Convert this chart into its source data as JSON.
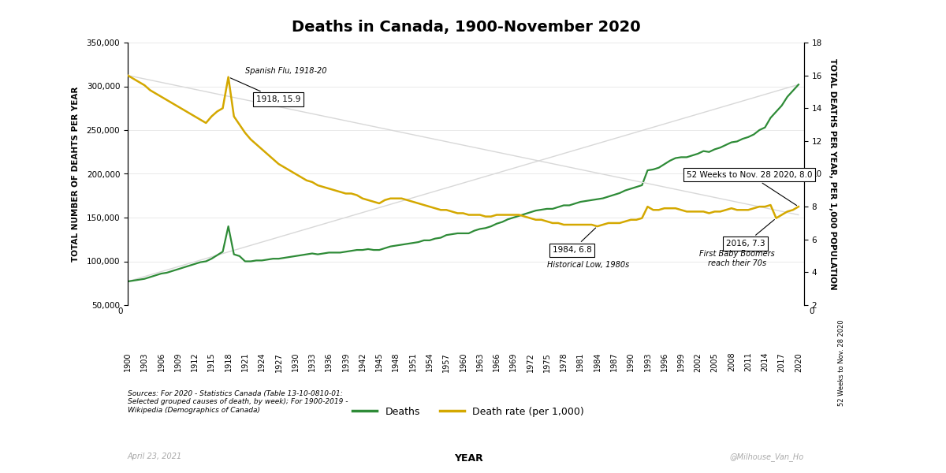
{
  "title": "Deaths in Canada, 1900-November 2020",
  "ylabel_left": "TOTAL NUMBER OF DEAHTS PER YEAR",
  "ylabel_right": "TOTAL DEATHS PER YEAR, PER 1,000 POPULATION",
  "xlabel": "YEAR",
  "left_ylim": [
    50000,
    350000
  ],
  "right_ylim": [
    2,
    18
  ],
  "deaths_color": "#2e8b37",
  "rate_color": "#d4a800",
  "trend_color": "#d0d0d0",
  "background_color": "#ffffff",
  "source_text": "Sources: For 2020 - Statistics Canada (Table 13-10-0810-01:\nSelected grouped causes of death, by week); For 1900-2019 -\nWikipedia (Demographics of Canada)",
  "date_text": "April 23, 2021",
  "handle_text": "@Milhouse_Van_Ho",
  "annotation_flu": "Spanish Flu, 1918-20",
  "annotation_flu_label": "1918, 15.9",
  "annotation_low_label": "1984, 6.8",
  "annotation_low_text": "Historical Low, 1980s",
  "annotation_2016_label": "2016, 7.3",
  "annotation_2016_text": "First Baby Boomers\nreach their 70s",
  "annotation_2020_label": "52 Weeks to Nov. 28 2020, 8.0",
  "years": [
    1900,
    1901,
    1902,
    1903,
    1904,
    1905,
    1906,
    1907,
    1908,
    1909,
    1910,
    1911,
    1912,
    1913,
    1914,
    1915,
    1916,
    1917,
    1918,
    1919,
    1920,
    1921,
    1922,
    1923,
    1924,
    1925,
    1926,
    1927,
    1928,
    1929,
    1930,
    1931,
    1932,
    1933,
    1934,
    1935,
    1936,
    1937,
    1938,
    1939,
    1940,
    1941,
    1942,
    1943,
    1944,
    1945,
    1946,
    1947,
    1948,
    1949,
    1950,
    1951,
    1952,
    1953,
    1954,
    1955,
    1956,
    1957,
    1958,
    1959,
    1960,
    1961,
    1962,
    1963,
    1964,
    1965,
    1966,
    1967,
    1968,
    1969,
    1970,
    1971,
    1972,
    1973,
    1974,
    1975,
    1976,
    1977,
    1978,
    1979,
    1980,
    1981,
    1982,
    1983,
    1984,
    1985,
    1986,
    1987,
    1988,
    1989,
    1990,
    1991,
    1992,
    1993,
    1994,
    1995,
    1996,
    1997,
    1998,
    1999,
    2000,
    2001,
    2002,
    2003,
    2004,
    2005,
    2006,
    2007,
    2008,
    2009,
    2010,
    2011,
    2012,
    2013,
    2014,
    2015,
    2016,
    2017,
    2018,
    2019,
    2020
  ],
  "deaths": [
    77000,
    78000,
    79000,
    80000,
    82000,
    84000,
    86000,
    87000,
    89000,
    91000,
    93000,
    95000,
    97000,
    99000,
    100000,
    103000,
    107000,
    111000,
    140000,
    108000,
    106000,
    100000,
    100000,
    101000,
    101000,
    102000,
    103000,
    103000,
    104000,
    105000,
    106000,
    107000,
    108000,
    109000,
    108000,
    109000,
    110000,
    110000,
    110000,
    111000,
    112000,
    113000,
    113000,
    114000,
    113000,
    113000,
    115000,
    117000,
    118000,
    119000,
    120000,
    121000,
    122000,
    124000,
    124000,
    126000,
    127000,
    130000,
    131000,
    132000,
    132000,
    132000,
    135000,
    137000,
    138000,
    140000,
    143000,
    145000,
    148000,
    150000,
    152000,
    154000,
    156000,
    158000,
    159000,
    160000,
    160000,
    162000,
    164000,
    164000,
    166000,
    168000,
    169000,
    170000,
    171000,
    172000,
    174000,
    176000,
    178000,
    181000,
    183000,
    185000,
    187000,
    204000,
    205000,
    207000,
    211000,
    215000,
    218000,
    219000,
    219000,
    221000,
    223000,
    226000,
    225000,
    228000,
    230000,
    233000,
    236000,
    237000,
    240000,
    242000,
    245000,
    250000,
    253000,
    264000,
    271000,
    278000,
    288000,
    295000,
    302000
  ],
  "death_rate": [
    16.0,
    15.8,
    15.6,
    15.4,
    15.1,
    14.9,
    14.7,
    14.5,
    14.3,
    14.1,
    13.9,
    13.7,
    13.5,
    13.3,
    13.1,
    13.5,
    13.8,
    14.0,
    15.9,
    13.5,
    13.0,
    12.5,
    12.1,
    11.8,
    11.5,
    11.2,
    10.9,
    10.6,
    10.4,
    10.2,
    10.0,
    9.8,
    9.6,
    9.5,
    9.3,
    9.2,
    9.1,
    9.0,
    8.9,
    8.8,
    8.8,
    8.7,
    8.5,
    8.4,
    8.3,
    8.2,
    8.4,
    8.5,
    8.5,
    8.5,
    8.4,
    8.3,
    8.2,
    8.1,
    8.0,
    7.9,
    7.8,
    7.8,
    7.7,
    7.6,
    7.6,
    7.5,
    7.5,
    7.5,
    7.4,
    7.4,
    7.5,
    7.5,
    7.5,
    7.5,
    7.5,
    7.4,
    7.3,
    7.2,
    7.2,
    7.1,
    7.0,
    7.0,
    6.9,
    6.9,
    6.9,
    6.9,
    6.9,
    6.9,
    6.8,
    6.9,
    7.0,
    7.0,
    7.0,
    7.1,
    7.2,
    7.2,
    7.3,
    8.0,
    7.8,
    7.8,
    7.9,
    7.9,
    7.9,
    7.8,
    7.7,
    7.7,
    7.7,
    7.7,
    7.6,
    7.7,
    7.7,
    7.8,
    7.9,
    7.8,
    7.8,
    7.8,
    7.9,
    8.0,
    8.0,
    8.1,
    7.3,
    7.5,
    7.7,
    7.8,
    8.0
  ],
  "xtick_years": [
    1900,
    1903,
    1906,
    1909,
    1912,
    1915,
    1918,
    1921,
    1924,
    1927,
    1930,
    1933,
    1936,
    1939,
    1942,
    1945,
    1948,
    1951,
    1954,
    1957,
    1960,
    1963,
    1966,
    1969,
    1972,
    1975,
    1978,
    1981,
    1984,
    1987,
    1990,
    1993,
    1996,
    1999,
    2002,
    2005,
    2008,
    2011,
    2014,
    2017,
    2020
  ]
}
